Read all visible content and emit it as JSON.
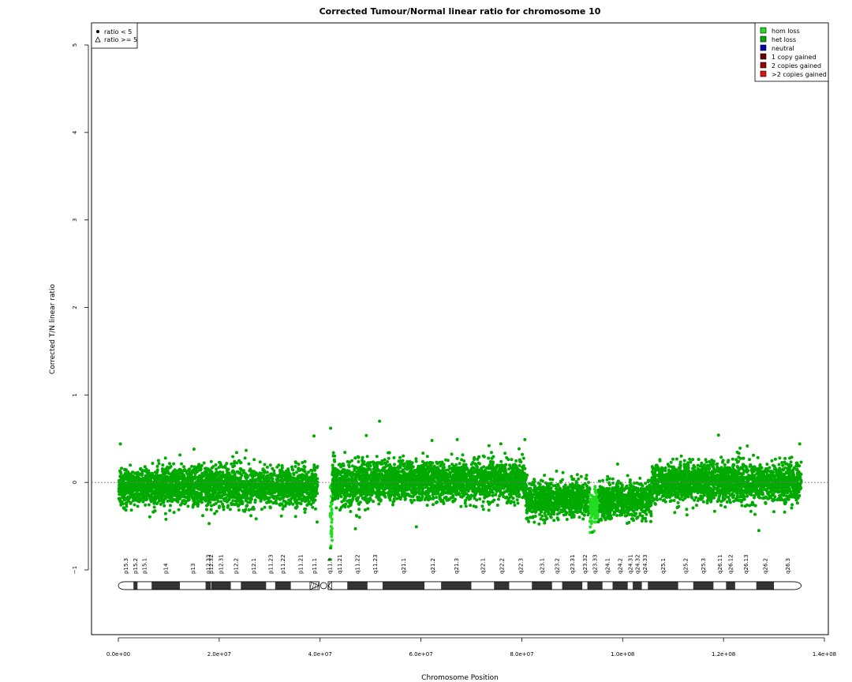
{
  "chart_data": {
    "type": "scatter",
    "title": "Corrected Tumour/Normal linear ratio for chromosome  10",
    "xlabel": "Chromosome Position",
    "ylabel": "Corrected T/N linear ratio",
    "xlim": [
      0,
      140000000
    ],
    "ylim": [
      -1.8,
      5.3
    ],
    "x_ticks": [
      0,
      20000000,
      40000000,
      60000000,
      80000000,
      100000000,
      120000000,
      140000000
    ],
    "x_tick_labels": [
      "0.0e+00",
      "2.0e+07",
      "4.0e+07",
      "6.0e+07",
      "8.0e+07",
      "1.0e+08",
      "1.2e+08",
      "1.4e+08"
    ],
    "y_ticks": [
      -1,
      0,
      1,
      2,
      3,
      4,
      5
    ],
    "y_tick_labels": [
      "−1",
      "0",
      "1",
      "2",
      "3",
      "4",
      "5"
    ],
    "reference_line_y": 0,
    "shape_legend": {
      "position": "top-left",
      "entries": [
        {
          "symbol": "circle",
          "label": "ratio < 5"
        },
        {
          "symbol": "triangle",
          "label": "ratio >= 5"
        }
      ]
    },
    "color_legend": {
      "position": "top-right",
      "entries": [
        {
          "label": "hom loss",
          "color": "#22dd22"
        },
        {
          "label": "het loss",
          "color": "#00aa00"
        },
        {
          "label": "neutral",
          "color": "#0000aa"
        },
        {
          "label": "1 copy gained",
          "color": "#660000"
        },
        {
          "label": "2 copies gained",
          "color": "#990000"
        },
        {
          "label": ">2 copies gained",
          "color": "#dd1111"
        }
      ]
    },
    "segments": [
      {
        "start": 100000,
        "end": 39500000,
        "mean": -0.05,
        "sd": 0.11,
        "state": "het loss"
      },
      {
        "start": 42000000,
        "end": 42400000,
        "mean": -0.38,
        "sd": 0.17,
        "state": "hom loss"
      },
      {
        "start": 42400000,
        "end": 50000000,
        "mean": -0.02,
        "sd": 0.13,
        "state": "het loss"
      },
      {
        "start": 50000000,
        "end": 80800000,
        "mean": 0.02,
        "sd": 0.11,
        "state": "het loss"
      },
      {
        "start": 80800000,
        "end": 93500000,
        "mean": -0.19,
        "sd": 0.1,
        "state": "het loss"
      },
      {
        "start": 93500000,
        "end": 95200000,
        "mean": -0.3,
        "sd": 0.09,
        "state": "hom loss"
      },
      {
        "start": 95200000,
        "end": 105700000,
        "mean": -0.2,
        "sd": 0.1,
        "state": "het loss"
      },
      {
        "start": 105700000,
        "end": 135400000,
        "mean": 0.0,
        "sd": 0.11,
        "state": "het loss"
      }
    ],
    "outliers": [
      {
        "x": 400000,
        "y": 0.44
      },
      {
        "x": 38800000,
        "y": 0.53
      },
      {
        "x": 42100000,
        "y": 0.62
      },
      {
        "x": 51800000,
        "y": 0.7
      },
      {
        "x": 62200000,
        "y": 0.48
      },
      {
        "x": 67200000,
        "y": 0.49
      },
      {
        "x": 73500000,
        "y": 0.42
      },
      {
        "x": 80600000,
        "y": 0.49
      },
      {
        "x": 119000000,
        "y": 0.54
      },
      {
        "x": 135100000,
        "y": 0.44
      },
      {
        "x": 18000000,
        "y": -0.47
      },
      {
        "x": 42100000,
        "y": -0.75
      },
      {
        "x": 41900000,
        "y": -0.88
      },
      {
        "x": 94000000,
        "y": -0.57
      },
      {
        "x": 127000000,
        "y": -0.55
      },
      {
        "x": 47000000,
        "y": -0.53
      },
      {
        "x": 15000000,
        "y": 0.38
      },
      {
        "x": 99000000,
        "y": 0.21
      }
    ],
    "ideogram": {
      "y": -1.18,
      "centromere": [
        39800000,
        41600000
      ],
      "bands": [
        {
          "name": "p15.3",
          "start": 0,
          "end": 3000000,
          "stain": "gneg"
        },
        {
          "name": "p15.2",
          "start": 3000000,
          "end": 3800000,
          "stain": "gpos"
        },
        {
          "name": "p15.1",
          "start": 3800000,
          "end": 6600000,
          "stain": "gneg"
        },
        {
          "name": "p14",
          "start": 6600000,
          "end": 12200000,
          "stain": "gpos"
        },
        {
          "name": "p13",
          "start": 12200000,
          "end": 17300000,
          "stain": "gneg"
        },
        {
          "name": "p12.33",
          "start": 17300000,
          "end": 18300000,
          "stain": "gpos"
        },
        {
          "name": "p12.32",
          "start": 18300000,
          "end": 18400000,
          "stain": "gneg"
        },
        {
          "name": "p12.31",
          "start": 18400000,
          "end": 22300000,
          "stain": "gpos"
        },
        {
          "name": "p12.2",
          "start": 22300000,
          "end": 24300000,
          "stain": "gneg"
        },
        {
          "name": "p12.1",
          "start": 24300000,
          "end": 29300000,
          "stain": "gpos"
        },
        {
          "name": "p11.23",
          "start": 29300000,
          "end": 31100000,
          "stain": "gneg"
        },
        {
          "name": "p11.22",
          "start": 31100000,
          "end": 34200000,
          "stain": "gpos"
        },
        {
          "name": "p11.21",
          "start": 34200000,
          "end": 38000000,
          "stain": "gneg"
        },
        {
          "name": "p11.1",
          "start": 38000000,
          "end": 39800000,
          "stain": "acen"
        },
        {
          "name": "q11.1",
          "start": 41600000,
          "end": 42300000,
          "stain": "acen"
        },
        {
          "name": "q11.21",
          "start": 42300000,
          "end": 45400000,
          "stain": "gneg"
        },
        {
          "name": "q11.22",
          "start": 45400000,
          "end": 49400000,
          "stain": "gpos"
        },
        {
          "name": "q11.23",
          "start": 49400000,
          "end": 52400000,
          "stain": "gneg"
        },
        {
          "name": "q21.1",
          "start": 52400000,
          "end": 60700000,
          "stain": "gpos"
        },
        {
          "name": "q21.2",
          "start": 60700000,
          "end": 64000000,
          "stain": "gneg"
        },
        {
          "name": "q21.3",
          "start": 64000000,
          "end": 70000000,
          "stain": "gpos"
        },
        {
          "name": "q22.1",
          "start": 70000000,
          "end": 74500000,
          "stain": "gneg"
        },
        {
          "name": "q22.2",
          "start": 74500000,
          "end": 77500000,
          "stain": "gpos"
        },
        {
          "name": "q22.3",
          "start": 77500000,
          "end": 82000000,
          "stain": "gneg"
        },
        {
          "name": "q23.1",
          "start": 82000000,
          "end": 86000000,
          "stain": "gpos"
        },
        {
          "name": "q23.2",
          "start": 86000000,
          "end": 88000000,
          "stain": "gneg"
        },
        {
          "name": "q23.31",
          "start": 88000000,
          "end": 92000000,
          "stain": "gpos"
        },
        {
          "name": "q23.32",
          "start": 92000000,
          "end": 93000000,
          "stain": "gneg"
        },
        {
          "name": "q23.33",
          "start": 93000000,
          "end": 96000000,
          "stain": "gpos"
        },
        {
          "name": "q24.1",
          "start": 96000000,
          "end": 98000000,
          "stain": "gneg"
        },
        {
          "name": "q24.2",
          "start": 98000000,
          "end": 101000000,
          "stain": "gpos"
        },
        {
          "name": "q24.31",
          "start": 101000000,
          "end": 102000000,
          "stain": "gneg"
        },
        {
          "name": "q24.32",
          "start": 102000000,
          "end": 103800000,
          "stain": "gpos"
        },
        {
          "name": "q24.33",
          "start": 103800000,
          "end": 105000000,
          "stain": "gneg"
        },
        {
          "name": "q25.1",
          "start": 105000000,
          "end": 111000000,
          "stain": "gpos"
        },
        {
          "name": "q25.2",
          "start": 111000000,
          "end": 114000000,
          "stain": "gneg"
        },
        {
          "name": "q25.3",
          "start": 114000000,
          "end": 118000000,
          "stain": "gpos"
        },
        {
          "name": "q26.11",
          "start": 118000000,
          "end": 120500000,
          "stain": "gneg"
        },
        {
          "name": "q26.12",
          "start": 120500000,
          "end": 122300000,
          "stain": "gpos"
        },
        {
          "name": "q26.13",
          "start": 122300000,
          "end": 126500000,
          "stain": "gneg"
        },
        {
          "name": "q26.2",
          "start": 126500000,
          "end": 130000000,
          "stain": "gpos"
        },
        {
          "name": "q26.3",
          "start": 130000000,
          "end": 135400000,
          "stain": "gneg"
        }
      ]
    }
  }
}
